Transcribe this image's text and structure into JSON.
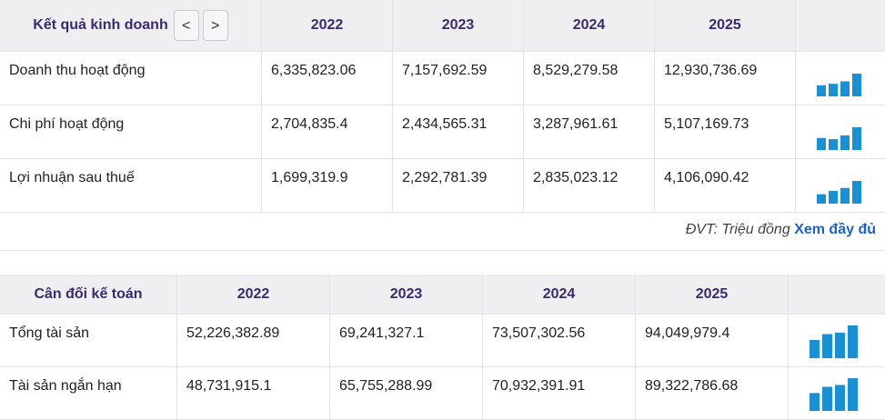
{
  "business_results": {
    "title": "Kết quả kinh doanh",
    "prev_button": "<",
    "next_button": ">",
    "years": [
      "2022",
      "2023",
      "2024",
      "2025"
    ],
    "rows": [
      {
        "label": "Doanh thu hoạt động",
        "values": [
          "6,335,823.06",
          "7,157,692.59",
          "8,529,279.58",
          "12,930,736.69"
        ]
      },
      {
        "label": "Chi phí hoạt động",
        "values": [
          "2,704,835.4",
          "2,434,565.31",
          "3,287,961.61",
          "5,107,169.73"
        ]
      },
      {
        "label": "Lợi nhuận sau thuế",
        "values": [
          "1,699,319.9",
          "2,292,781.39",
          "2,835,023.12",
          "4,106,090.42"
        ]
      }
    ]
  },
  "footer": {
    "unit_note": "ĐVT: Triệu đồng",
    "link": "Xem đầy đủ"
  },
  "balance_sheet": {
    "title": "Cân đối kế toán",
    "years": [
      "2022",
      "2023",
      "2024",
      "2025"
    ],
    "rows": [
      {
        "label": "Tổng tài sản",
        "values": [
          "52,226,382.89",
          "69,241,327.1",
          "73,507,302.56",
          "94,049,979.4"
        ]
      },
      {
        "label": "Tài sản ngắn hạn",
        "values": [
          "48,731,915.1",
          "65,755,288.99",
          "70,932,391.91",
          "89,322,786.68"
        ]
      }
    ]
  }
}
